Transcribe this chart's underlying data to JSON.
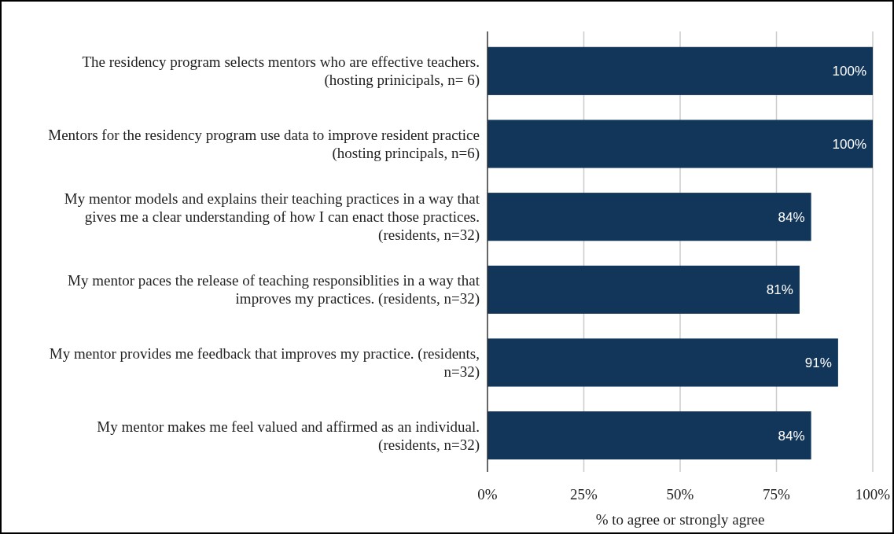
{
  "chart_data": {
    "type": "bar",
    "orientation": "horizontal",
    "xlabel": "% to agree or strongly agree",
    "categories": [
      "The residency program selects mentors who are effective teachers. (hosting prinicipals, n= 6)",
      "Mentors for the residency program use data to improve resident practice (hosting principals, n=6)",
      "My mentor models and explains their teaching practices in a way that gives me a clear understanding of how I can enact those practices. (residents, n=32)",
      "My mentor paces the release of teaching responsiblities in a way that improves my practices. (residents, n=32)",
      "My mentor provides me feedback that improves my practice. (residents, n=32)",
      "My mentor makes me feel valued and affirmed as an individual. (residents, n=32)"
    ],
    "values": [
      100,
      100,
      84,
      81,
      91,
      84
    ],
    "value_labels": [
      "100%",
      "100%",
      "84%",
      "81%",
      "91%",
      "84%"
    ],
    "color": "#12365a",
    "xlim": [
      0,
      100
    ],
    "xticks": [
      {
        "value": 0,
        "label": "0%"
      },
      {
        "value": 25,
        "label": "25%"
      },
      {
        "value": 50,
        "label": "50%"
      },
      {
        "value": 75,
        "label": "75%"
      },
      {
        "value": 100,
        "label": "100%"
      }
    ],
    "grid": "x"
  }
}
